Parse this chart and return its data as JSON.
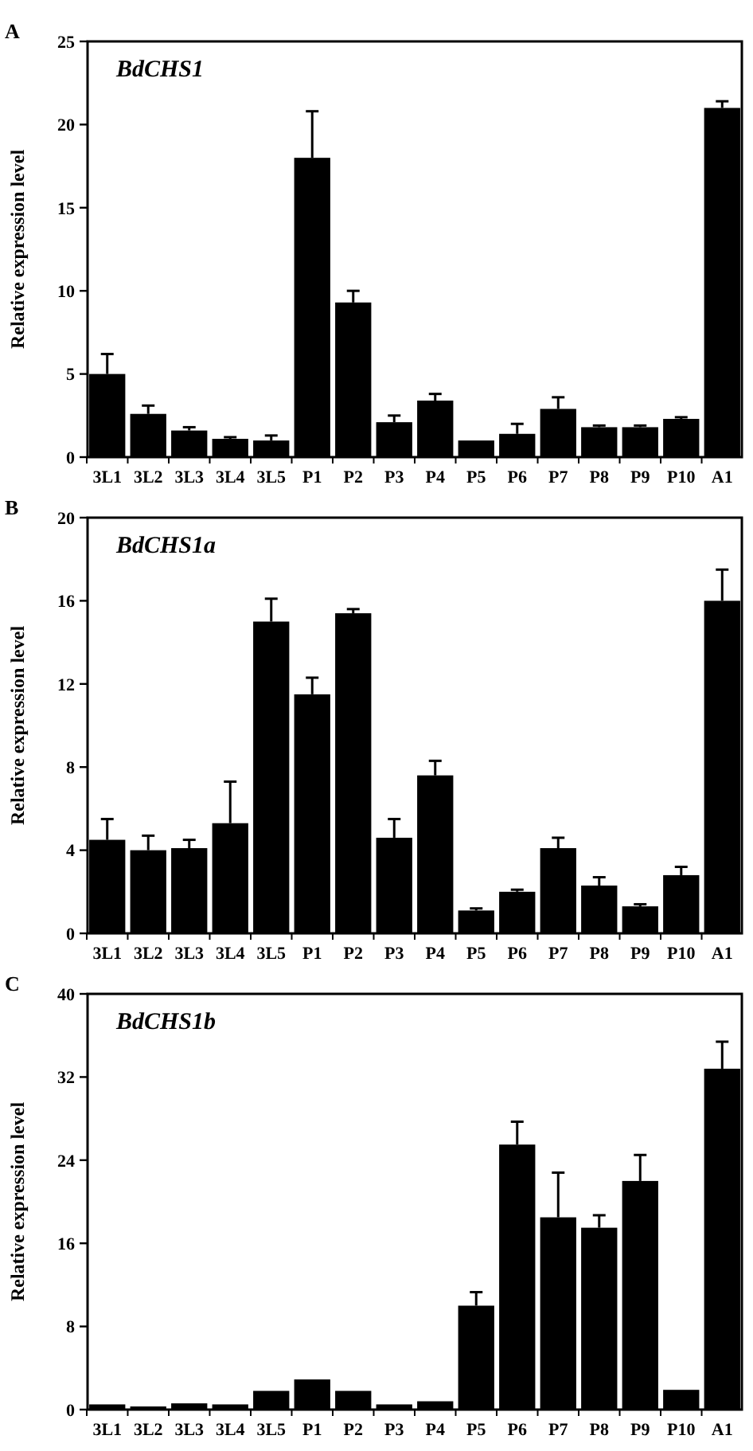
{
  "chart_data": [
    {
      "type": "bar",
      "title": "BdCHS1",
      "annotations": [
        "A"
      ],
      "ylabel": "Relative expression level",
      "categories": [
        "3L1",
        "3L2",
        "3L3",
        "3L4",
        "3L5",
        "P1",
        "P2",
        "P3",
        "P4",
        "P5",
        "P6",
        "P7",
        "P8",
        "P9",
        "P10",
        "A1"
      ],
      "values": [
        5.0,
        2.6,
        1.6,
        1.1,
        1.0,
        18.0,
        9.3,
        2.1,
        3.4,
        1.0,
        1.4,
        2.9,
        1.8,
        1.8,
        2.3,
        21.0
      ],
      "errors": [
        1.2,
        0.5,
        0.2,
        0.1,
        0.3,
        2.8,
        0.7,
        0.4,
        0.4,
        null,
        0.6,
        0.7,
        0.1,
        0.1,
        0.1,
        0.4
      ],
      "color": "#000000",
      "ylim": [
        0,
        25
      ],
      "yticks": [
        0,
        5,
        10,
        15,
        20,
        25
      ],
      "grid": false
    },
    {
      "type": "bar",
      "title": "BdCHS1a",
      "annotations": [
        "B"
      ],
      "ylabel": "Relative expression level",
      "categories": [
        "3L1",
        "3L2",
        "3L3",
        "3L4",
        "3L5",
        "P1",
        "P2",
        "P3",
        "P4",
        "P5",
        "P6",
        "P7",
        "P8",
        "P9",
        "P10",
        "A1"
      ],
      "values": [
        4.5,
        4.0,
        4.1,
        5.3,
        15.0,
        11.5,
        15.4,
        4.6,
        7.6,
        1.1,
        2.0,
        4.1,
        2.3,
        1.3,
        2.8,
        16.0
      ],
      "errors": [
        1.0,
        0.7,
        0.4,
        2.0,
        1.1,
        0.8,
        0.2,
        0.9,
        0.7,
        0.1,
        0.1,
        0.5,
        0.4,
        0.1,
        0.4,
        1.5
      ],
      "color": "#000000",
      "ylim": [
        0,
        20
      ],
      "yticks": [
        0,
        4,
        8,
        12,
        16,
        20
      ],
      "grid": false
    },
    {
      "type": "bar",
      "title": "BdCHS1b",
      "annotations": [
        "C"
      ],
      "ylabel": "Relative expression level",
      "categories": [
        "3L1",
        "3L2",
        "3L3",
        "3L4",
        "3L5",
        "P1",
        "P2",
        "P3",
        "P4",
        "P5",
        "P6",
        "P7",
        "P8",
        "P9",
        "P10",
        "A1"
      ],
      "values": [
        0.5,
        0.3,
        0.6,
        0.5,
        1.8,
        2.9,
        1.8,
        0.5,
        0.8,
        10.0,
        25.5,
        18.5,
        17.5,
        22.0,
        1.9,
        32.8
      ],
      "errors": [
        null,
        null,
        null,
        null,
        null,
        null,
        null,
        null,
        null,
        1.3,
        2.2,
        4.3,
        1.2,
        2.5,
        null,
        2.6
      ],
      "color": "#000000",
      "ylim": [
        0,
        40
      ],
      "yticks": [
        0,
        8,
        16,
        24,
        32,
        40
      ],
      "grid": false
    }
  ]
}
